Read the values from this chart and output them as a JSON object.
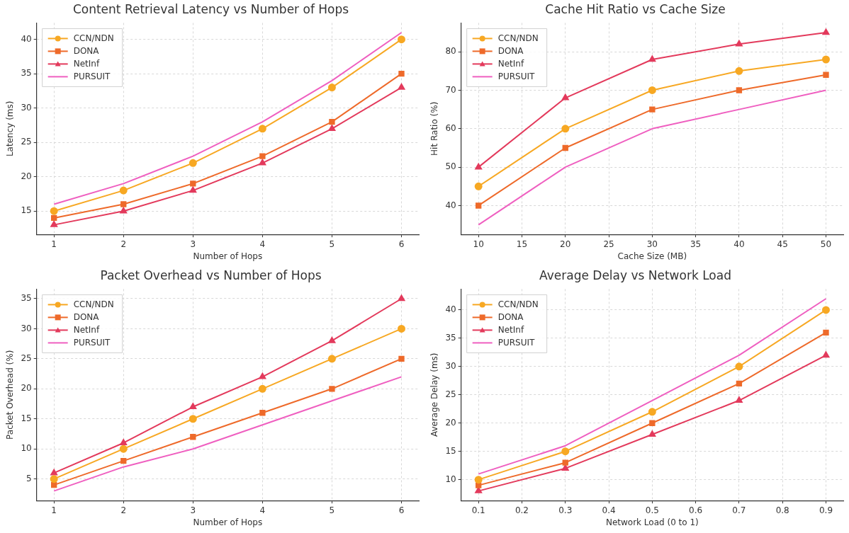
{
  "chart_data": [
    {
      "type": "line",
      "title": "Content Retrieval Latency vs Number of Hops",
      "xlabel": "Number of Hops",
      "ylabel": "Latency (ms)",
      "x": [
        1,
        2,
        3,
        4,
        5,
        6
      ],
      "xlim": [
        0.75,
        6.25
      ],
      "xticks": [
        1,
        2,
        3,
        4,
        5,
        6
      ],
      "ylim": [
        11.6,
        42.4
      ],
      "yticks": [
        15,
        20,
        25,
        30,
        35,
        40
      ],
      "grid": true,
      "legend": "top left",
      "series": [
        {
          "name": "CCN/NDN",
          "color": "#f7a823",
          "marker": "circle",
          "values": [
            15,
            18,
            22,
            27,
            33,
            40
          ]
        },
        {
          "name": "DONA",
          "color": "#ee6a2a",
          "marker": "square",
          "values": [
            14,
            16,
            19,
            23,
            28,
            35
          ]
        },
        {
          "name": "NetInf",
          "color": "#e33a5c",
          "marker": "triangle",
          "values": [
            13,
            15,
            18,
            22,
            27,
            33
          ]
        },
        {
          "name": "PURSUIT",
          "color": "#ef5fc0",
          "marker": "none",
          "values": [
            16,
            19,
            23,
            28,
            34,
            41
          ]
        }
      ]
    },
    {
      "type": "line",
      "title": "Cache Hit Ratio vs Cache Size",
      "xlabel": "Cache Size (MB)",
      "ylabel": "Hit Ratio (%)",
      "x": [
        10,
        20,
        30,
        40,
        50
      ],
      "xlim": [
        8,
        52
      ],
      "xticks": [
        10,
        15,
        20,
        25,
        30,
        35,
        40,
        45,
        50
      ],
      "ylim": [
        32.5,
        87.5
      ],
      "yticks": [
        40,
        50,
        60,
        70,
        80
      ],
      "grid": true,
      "legend": "top left",
      "series": [
        {
          "name": "CCN/NDN",
          "color": "#f7a823",
          "marker": "circle",
          "values": [
            45,
            60,
            70,
            75,
            78
          ]
        },
        {
          "name": "DONA",
          "color": "#ee6a2a",
          "marker": "square",
          "values": [
            40,
            55,
            65,
            70,
            74
          ]
        },
        {
          "name": "NetInf",
          "color": "#e33a5c",
          "marker": "triangle",
          "values": [
            50,
            68,
            78,
            82,
            85
          ]
        },
        {
          "name": "PURSUIT",
          "color": "#ef5fc0",
          "marker": "none",
          "values": [
            35,
            50,
            60,
            65,
            70
          ]
        }
      ]
    },
    {
      "type": "line",
      "title": "Packet Overhead vs Number of Hops",
      "xlabel": "Number of Hops",
      "ylabel": "Packet Overhead (%)",
      "x": [
        1,
        2,
        3,
        4,
        5,
        6
      ],
      "xlim": [
        0.75,
        6.25
      ],
      "xticks": [
        1,
        2,
        3,
        4,
        5,
        6
      ],
      "ylim": [
        1.4,
        36.6
      ],
      "yticks": [
        5,
        10,
        15,
        20,
        25,
        30,
        35
      ],
      "grid": true,
      "legend": "top left",
      "series": [
        {
          "name": "CCN/NDN",
          "color": "#f7a823",
          "marker": "circle",
          "values": [
            5,
            10,
            15,
            20,
            25,
            30
          ]
        },
        {
          "name": "DONA",
          "color": "#ee6a2a",
          "marker": "square",
          "values": [
            4,
            8,
            12,
            16,
            20,
            25
          ]
        },
        {
          "name": "NetInf",
          "color": "#e33a5c",
          "marker": "triangle",
          "values": [
            6,
            11,
            17,
            22,
            28,
            35
          ]
        },
        {
          "name": "PURSUIT",
          "color": "#ef5fc0",
          "marker": "none",
          "values": [
            3,
            7,
            10,
            14,
            18,
            22
          ]
        }
      ]
    },
    {
      "type": "line",
      "title": "Average Delay vs Network Load",
      "xlabel": "Network Load (0 to 1)",
      "ylabel": "Average Delay (ms)",
      "x": [
        0.1,
        0.3,
        0.5,
        0.7,
        0.9
      ],
      "xlim": [
        0.06,
        0.94
      ],
      "xticks": [
        0.1,
        0.2,
        0.3,
        0.4,
        0.5,
        0.6,
        0.7,
        0.8,
        0.9
      ],
      "ylim": [
        6.3,
        43.7
      ],
      "yticks": [
        10,
        15,
        20,
        25,
        30,
        35,
        40
      ],
      "grid": true,
      "legend": "top left",
      "series": [
        {
          "name": "CCN/NDN",
          "color": "#f7a823",
          "marker": "circle",
          "values": [
            10,
            15,
            22,
            30,
            40
          ]
        },
        {
          "name": "DONA",
          "color": "#ee6a2a",
          "marker": "square",
          "values": [
            9,
            13,
            20,
            27,
            36
          ]
        },
        {
          "name": "NetInf",
          "color": "#e33a5c",
          "marker": "triangle",
          "values": [
            8,
            12,
            18,
            24,
            32
          ]
        },
        {
          "name": "PURSUIT",
          "color": "#ef5fc0",
          "marker": "none",
          "values": [
            11,
            16,
            24,
            32,
            42
          ]
        }
      ]
    }
  ]
}
